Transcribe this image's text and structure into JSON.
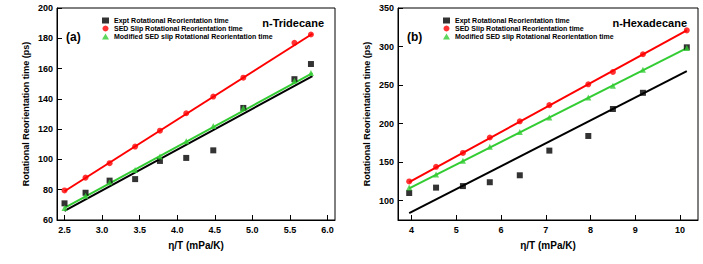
{
  "chart_data": [
    {
      "type": "scatter",
      "panel": "(a)",
      "title": "n-Tridecane",
      "x_label": "η/T (mPa/K)",
      "y_label": "Rotational Reorientation time (ps)",
      "xlim": [
        2.4,
        6.1
      ],
      "xticks": [
        2.5,
        {
          "value": 3,
          "label": "3.0"
        },
        3.5,
        {
          "value": 4,
          "label": "4.0"
        },
        4.5,
        {
          "value": 5,
          "label": "5.0"
        },
        5.5,
        {
          "value": 6,
          "label": "6.0"
        }
      ],
      "ylim": [
        60,
        200
      ],
      "yticks": [
        60,
        80,
        100,
        120,
        140,
        160,
        180,
        200
      ],
      "grid": false,
      "legend": "upper left",
      "x": [
        2.5,
        2.78,
        3.1,
        3.44,
        3.77,
        4.12,
        4.48,
        4.88,
        5.56,
        5.78
      ],
      "series": [
        {
          "name": "Expt Rotational Reorientation time",
          "color": "#000000",
          "marker": "square",
          "values": [
            71,
            78,
            86,
            87,
            99,
            101,
            106,
            134,
            153,
            163
          ],
          "fit_x": [
            2.5,
            5.8
          ],
          "fit_values": [
            66,
            155
          ]
        },
        {
          "name": "SED Slip Rotational Reorientation time",
          "color": "#ff0000",
          "marker": "circle",
          "values": [
            79.5,
            88,
            97.5,
            108.5,
            119,
            130.5,
            141.5,
            154,
            177,
            182.5
          ],
          "fit_x": [
            2.5,
            5.8
          ],
          "fit_values": [
            79,
            183
          ]
        },
        {
          "name": "Modified SED slip Rotational Reorientation time",
          "color": "#33cc33",
          "marker": "triangle",
          "values": [
            68,
            76,
            85,
            93,
            102,
            112,
            122,
            134,
            152,
            157
          ],
          "fit_x": [
            2.5,
            5.8
          ],
          "fit_values": [
            68,
            157
          ]
        }
      ]
    },
    {
      "type": "scatter",
      "panel": "(b)",
      "title": "n-Hexadecane",
      "x_label": "η/T (mPa/K)",
      "y_label": "Rotational Reorientation time (ps)",
      "xlim": [
        3.7,
        10.4
      ],
      "xticks": [
        4,
        5,
        6,
        7,
        8,
        9,
        10
      ],
      "ylim": [
        75,
        350
      ],
      "yticks": [
        100,
        150,
        200,
        250,
        300,
        350
      ],
      "grid": false,
      "legend": "upper left",
      "x": [
        3.95,
        4.55,
        5.15,
        5.75,
        6.42,
        7.08,
        7.95,
        8.5,
        9.17,
        10.15
      ],
      "series": [
        {
          "name": "Expt Rotational Reorientation time",
          "color": "#000000",
          "marker": "square",
          "values": [
            110,
            117,
            119,
            124,
            133,
            165,
            184,
            219,
            240,
            299
          ],
          "fit_x": [
            3.95,
            10.15
          ],
          "fit_values": [
            84,
            268
          ]
        },
        {
          "name": "SED Slip Rotational Reorientation time",
          "color": "#ff0000",
          "marker": "circle",
          "values": [
            125,
            144,
            162,
            182,
            203,
            224,
            251,
            267,
            290,
            321
          ],
          "fit_x": [
            3.95,
            10.15
          ],
          "fit_values": [
            124,
            321
          ]
        },
        {
          "name": "Modified SED slip Rotational Reorientation time",
          "color": "#33cc33",
          "marker": "triangle",
          "values": [
            117,
            134,
            152,
            170,
            189,
            208,
            234,
            249,
            270,
            298
          ],
          "fit_x": [
            3.95,
            10.15
          ],
          "fit_values": [
            116,
            298
          ]
        }
      ]
    }
  ]
}
